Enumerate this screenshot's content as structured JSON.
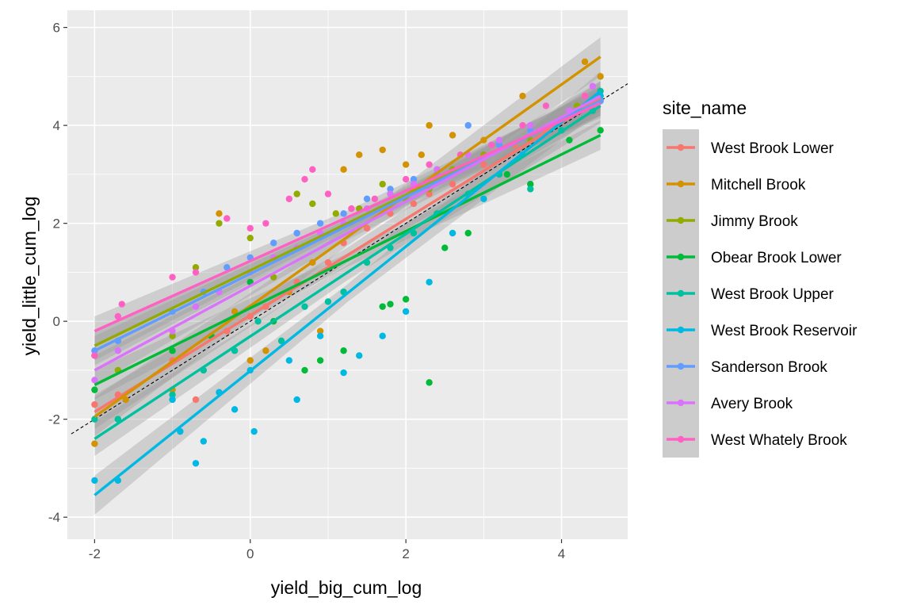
{
  "chart_data": {
    "type": "scatter",
    "title": "",
    "xlabel": "yield_big_cum_log",
    "ylabel": "yield_little_cum_log",
    "xlim": [
      -2.35,
      4.85
    ],
    "ylim": [
      -4.45,
      6.35
    ],
    "x_ticks": [
      -2,
      0,
      2,
      4
    ],
    "y_ticks": [
      -4,
      -2,
      0,
      2,
      4,
      6
    ],
    "x_tick_labels": [
      "-2",
      "0",
      "2",
      "4"
    ],
    "y_tick_labels": [
      "-4",
      "-2",
      "0",
      "2",
      "4",
      "6"
    ],
    "grid": true,
    "panel_background": "#ebebeb",
    "reference_line": {
      "style": "dashed",
      "slope": 1,
      "intercept": 0,
      "color": "#000000"
    },
    "legend": {
      "title": "site_name",
      "position": "right"
    },
    "series": [
      {
        "name": "West Brook Lower",
        "color": "#F8766D",
        "fit": {
          "x": [
            -2,
            4.5
          ],
          "y": [
            -1.85,
            4.55
          ],
          "se": 0.35
        },
        "points": [
          [
            -2,
            -1.7
          ],
          [
            -1.7,
            -1.5
          ],
          [
            -1,
            -0.8
          ],
          [
            -0.7,
            -1.6
          ],
          [
            -0.3,
            -0.2
          ],
          [
            0,
            0.1
          ],
          [
            0.2,
            0.3
          ],
          [
            0.6,
            0.8
          ],
          [
            1,
            1.2
          ],
          [
            1.2,
            1.6
          ],
          [
            1.5,
            1.9
          ],
          [
            1.8,
            2.2
          ],
          [
            2.1,
            2.4
          ],
          [
            2.3,
            2.6
          ],
          [
            2.6,
            2.8
          ],
          [
            3,
            3.2
          ],
          [
            3.4,
            3.6
          ],
          [
            3.8,
            3.9
          ],
          [
            4.3,
            4.4
          ],
          [
            4.5,
            4.5
          ]
        ]
      },
      {
        "name": "Mitchell Brook",
        "color": "#D39200",
        "fit": {
          "x": [
            -2,
            4.5
          ],
          "y": [
            -1.95,
            5.4
          ],
          "se": 0.4
        },
        "points": [
          [
            -2,
            -2.5
          ],
          [
            -1.6,
            -1.6
          ],
          [
            -1,
            -1.4
          ],
          [
            -0.4,
            2.2
          ],
          [
            -0.2,
            0.2
          ],
          [
            0,
            -0.8
          ],
          [
            0.2,
            -0.6
          ],
          [
            0.5,
            0.6
          ],
          [
            0.8,
            1.2
          ],
          [
            0.9,
            -0.2
          ],
          [
            1.2,
            3.1
          ],
          [
            1.4,
            3.4
          ],
          [
            1.7,
            3.5
          ],
          [
            2,
            3.2
          ],
          [
            2.2,
            3.4
          ],
          [
            2.3,
            4.0
          ],
          [
            2.6,
            3.8
          ],
          [
            3,
            3.7
          ],
          [
            3.5,
            4.6
          ],
          [
            4.3,
            5.3
          ],
          [
            4.5,
            5.0
          ]
        ]
      },
      {
        "name": "Jimmy Brook",
        "color": "#93AA00",
        "fit": {
          "x": [
            -2,
            4.5
          ],
          "y": [
            -0.5,
            4.5
          ],
          "se": 0.3
        },
        "points": [
          [
            -2,
            -0.7
          ],
          [
            -1.7,
            -1.0
          ],
          [
            -1,
            -0.3
          ],
          [
            -0.7,
            1.1
          ],
          [
            -0.4,
            2.0
          ],
          [
            0,
            1.7
          ],
          [
            0.3,
            0.9
          ],
          [
            0.6,
            2.6
          ],
          [
            0.8,
            2.4
          ],
          [
            1.1,
            2.2
          ],
          [
            1.4,
            2.3
          ],
          [
            1.7,
            2.8
          ],
          [
            2,
            2.5
          ],
          [
            2.3,
            2.7
          ],
          [
            2.6,
            3.1
          ],
          [
            3,
            3.4
          ],
          [
            3.6,
            3.7
          ],
          [
            4.2,
            4.4
          ],
          [
            4.5,
            4.6
          ]
        ]
      },
      {
        "name": "Obear Brook Lower",
        "color": "#00BA38",
        "fit": {
          "x": [
            -2,
            4.5
          ],
          "y": [
            -1.3,
            3.8
          ],
          "se": 0.3
        },
        "points": [
          [
            -2,
            -1.4
          ],
          [
            -1.7,
            -2.0
          ],
          [
            -1,
            -0.6
          ],
          [
            -0.5,
            -0.3
          ],
          [
            0,
            0.8
          ],
          [
            0.3,
            0.0
          ],
          [
            0.7,
            -1.0
          ],
          [
            0.9,
            -0.8
          ],
          [
            1.2,
            -0.6
          ],
          [
            1.7,
            0.3
          ],
          [
            1.8,
            0.35
          ],
          [
            2,
            0.45
          ],
          [
            2.3,
            -1.25
          ],
          [
            2.5,
            1.5
          ],
          [
            2.8,
            1.8
          ],
          [
            3.3,
            3.0
          ],
          [
            3.6,
            2.8
          ],
          [
            4.1,
            3.7
          ],
          [
            4.5,
            3.9
          ]
        ]
      },
      {
        "name": "West Brook Upper",
        "color": "#00C19F",
        "fit": {
          "x": [
            -2,
            4.5
          ],
          "y": [
            -2.4,
            4.4
          ],
          "se": 0.35
        },
        "points": [
          [
            -2,
            -2.0
          ],
          [
            -1.7,
            -2.0
          ],
          [
            -1,
            -1.5
          ],
          [
            -0.6,
            -1.0
          ],
          [
            -0.2,
            -0.6
          ],
          [
            0.1,
            0.0
          ],
          [
            0.4,
            -0.4
          ],
          [
            0.7,
            0.3
          ],
          [
            1,
            0.4
          ],
          [
            1.2,
            0.6
          ],
          [
            1.5,
            1.2
          ],
          [
            1.8,
            1.5
          ],
          [
            2.1,
            1.8
          ],
          [
            2.4,
            2.2
          ],
          [
            2.8,
            2.6
          ],
          [
            3.2,
            3.0
          ],
          [
            3.6,
            2.7
          ],
          [
            4.0,
            3.9
          ],
          [
            4.4,
            4.3
          ],
          [
            4.5,
            4.7
          ]
        ]
      },
      {
        "name": "West Brook Reservoir",
        "color": "#00B9E3",
        "fit": {
          "x": [
            -2,
            4.5
          ],
          "y": [
            -3.55,
            4.7
          ],
          "se": 0.4
        },
        "points": [
          [
            -2,
            -3.25
          ],
          [
            -1.7,
            -3.25
          ],
          [
            -1,
            -1.6
          ],
          [
            -0.9,
            -2.25
          ],
          [
            -0.7,
            -2.9
          ],
          [
            -0.6,
            -2.45
          ],
          [
            -0.4,
            -1.45
          ],
          [
            -0.2,
            -1.8
          ],
          [
            0,
            -1.0
          ],
          [
            0.05,
            -2.25
          ],
          [
            0.5,
            -0.8
          ],
          [
            0.6,
            -1.6
          ],
          [
            0.9,
            -0.3
          ],
          [
            1.2,
            -1.05
          ],
          [
            1.4,
            -0.7
          ],
          [
            1.7,
            -0.3
          ],
          [
            2,
            0.2
          ],
          [
            2.3,
            0.8
          ],
          [
            2.6,
            1.8
          ],
          [
            3,
            2.5
          ],
          [
            3.5,
            3.4
          ],
          [
            4,
            4.1
          ],
          [
            4.5,
            4.6
          ]
        ]
      },
      {
        "name": "Sanderson Brook",
        "color": "#619CFF",
        "fit": {
          "x": [
            -2,
            4.5
          ],
          "y": [
            -0.6,
            4.5
          ],
          "se": 0.3
        },
        "points": [
          [
            -2,
            -0.6
          ],
          [
            -1.7,
            -0.4
          ],
          [
            -1,
            0.2
          ],
          [
            -0.6,
            0.6
          ],
          [
            -0.3,
            1.1
          ],
          [
            0,
            1.3
          ],
          [
            0.3,
            1.6
          ],
          [
            0.6,
            1.8
          ],
          [
            0.9,
            2.0
          ],
          [
            1.2,
            2.2
          ],
          [
            1.5,
            2.5
          ],
          [
            1.8,
            2.7
          ],
          [
            2.1,
            2.9
          ],
          [
            2.4,
            3.0
          ],
          [
            2.8,
            4.0
          ],
          [
            3.2,
            3.6
          ],
          [
            3.6,
            3.9
          ],
          [
            4.1,
            4.2
          ],
          [
            4.5,
            4.5
          ]
        ]
      },
      {
        "name": "Avery Brook",
        "color": "#DB72FB",
        "fit": {
          "x": [
            -2,
            4.5
          ],
          "y": [
            -1.0,
            4.6
          ],
          "se": 0.3
        },
        "points": [
          [
            -2,
            -1.2
          ],
          [
            -1.7,
            -0.6
          ],
          [
            -1,
            -0.2
          ],
          [
            -0.7,
            0.3
          ],
          [
            -0.4,
            0.6
          ],
          [
            0,
            1.0
          ],
          [
            0.3,
            1.3
          ],
          [
            0.6,
            1.5
          ],
          [
            0.9,
            1.8
          ],
          [
            1.2,
            2.0
          ],
          [
            1.5,
            2.3
          ],
          [
            1.8,
            2.6
          ],
          [
            2.1,
            2.8
          ],
          [
            2.4,
            3.1
          ],
          [
            2.8,
            3.4
          ],
          [
            3.2,
            3.7
          ],
          [
            3.6,
            4.0
          ],
          [
            4.1,
            4.3
          ],
          [
            4.4,
            4.8
          ]
        ]
      },
      {
        "name": "West Whately Brook",
        "color": "#FF61C3",
        "fit": {
          "x": [
            -2,
            4.5
          ],
          "y": [
            -0.2,
            4.45
          ],
          "se": 0.3
        },
        "points": [
          [
            -2,
            -0.7
          ],
          [
            -1.7,
            0.1
          ],
          [
            -1.65,
            0.35
          ],
          [
            -1,
            0.9
          ],
          [
            -0.7,
            1.0
          ],
          [
            -0.3,
            2.1
          ],
          [
            0,
            1.9
          ],
          [
            0.2,
            2.0
          ],
          [
            0.5,
            2.5
          ],
          [
            0.7,
            2.9
          ],
          [
            0.8,
            3.1
          ],
          [
            1,
            2.6
          ],
          [
            1.3,
            2.3
          ],
          [
            1.6,
            2.5
          ],
          [
            2,
            2.9
          ],
          [
            2.3,
            3.2
          ],
          [
            2.7,
            3.4
          ],
          [
            3.1,
            3.6
          ],
          [
            3.5,
            4.0
          ],
          [
            3.8,
            4.4
          ],
          [
            4.3,
            4.6
          ]
        ]
      }
    ]
  }
}
